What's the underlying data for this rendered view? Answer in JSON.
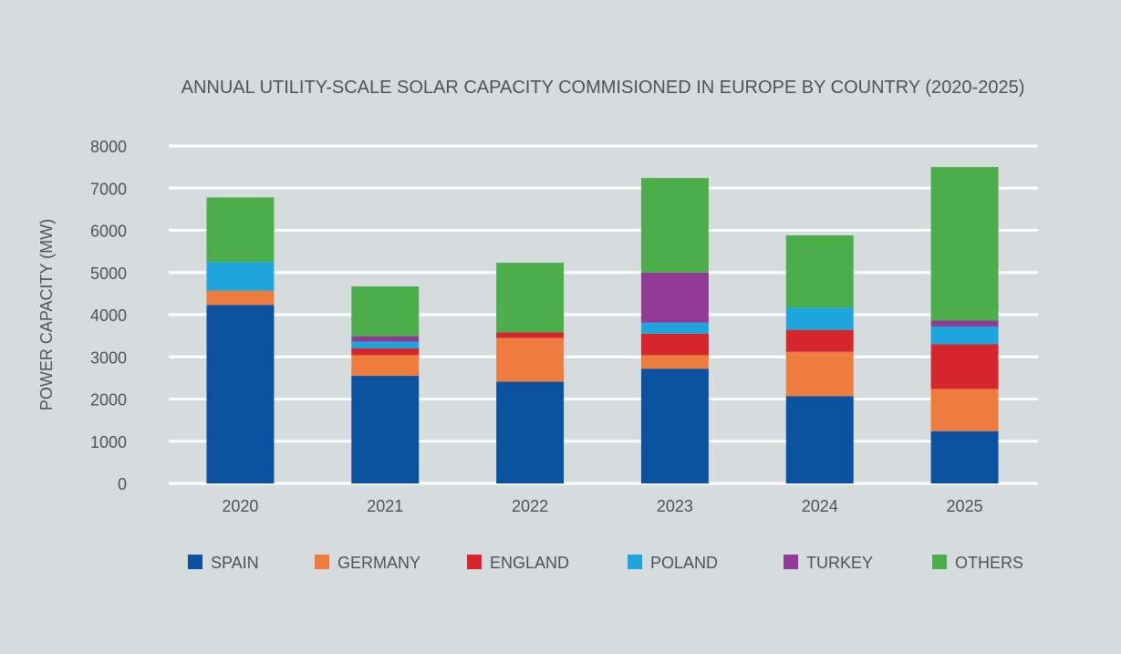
{
  "chart_data": {
    "type": "bar",
    "stacked": true,
    "title": "ANNUAL UTILITY-SCALE SOLAR CAPACITY COMMISIONED IN EUROPE BY COUNTRY (2020-2025)",
    "xlabel": "",
    "ylabel": "POWER CAPACITY (MW)",
    "ylim": [
      0,
      8000
    ],
    "yticks": [
      "0",
      "1000",
      "2000",
      "3000",
      "4000",
      "5000",
      "6000",
      "7000",
      "8000"
    ],
    "grid": true,
    "legend_position": "bottom",
    "categories": [
      "2020",
      "2021",
      "2022",
      "2023",
      "2024",
      "2025"
    ],
    "series": [
      {
        "name": "SPAIN",
        "color": "#0a52a0",
        "values": [
          4230,
          2550,
          2410,
          2720,
          2070,
          1240
        ]
      },
      {
        "name": "GERMANY",
        "color": "#ef7c3f",
        "values": [
          340,
          490,
          1040,
          320,
          1050,
          1000
        ]
      },
      {
        "name": "ENGLAND",
        "color": "#d5262d",
        "values": [
          0,
          160,
          130,
          510,
          520,
          1060
        ]
      },
      {
        "name": "POLAND",
        "color": "#1ea5db",
        "values": [
          680,
          160,
          0,
          260,
          530,
          420
        ]
      },
      {
        "name": "TURKEY",
        "color": "#913b97",
        "values": [
          0,
          130,
          0,
          1190,
          0,
          140
        ]
      },
      {
        "name": "OTHERS",
        "color": "#4bae4a",
        "values": [
          1530,
          1180,
          1650,
          2240,
          1710,
          3640
        ]
      }
    ]
  },
  "colors": {
    "background": "#d6dcde",
    "gridline": "#ffffff",
    "text": "#4a545c"
  }
}
